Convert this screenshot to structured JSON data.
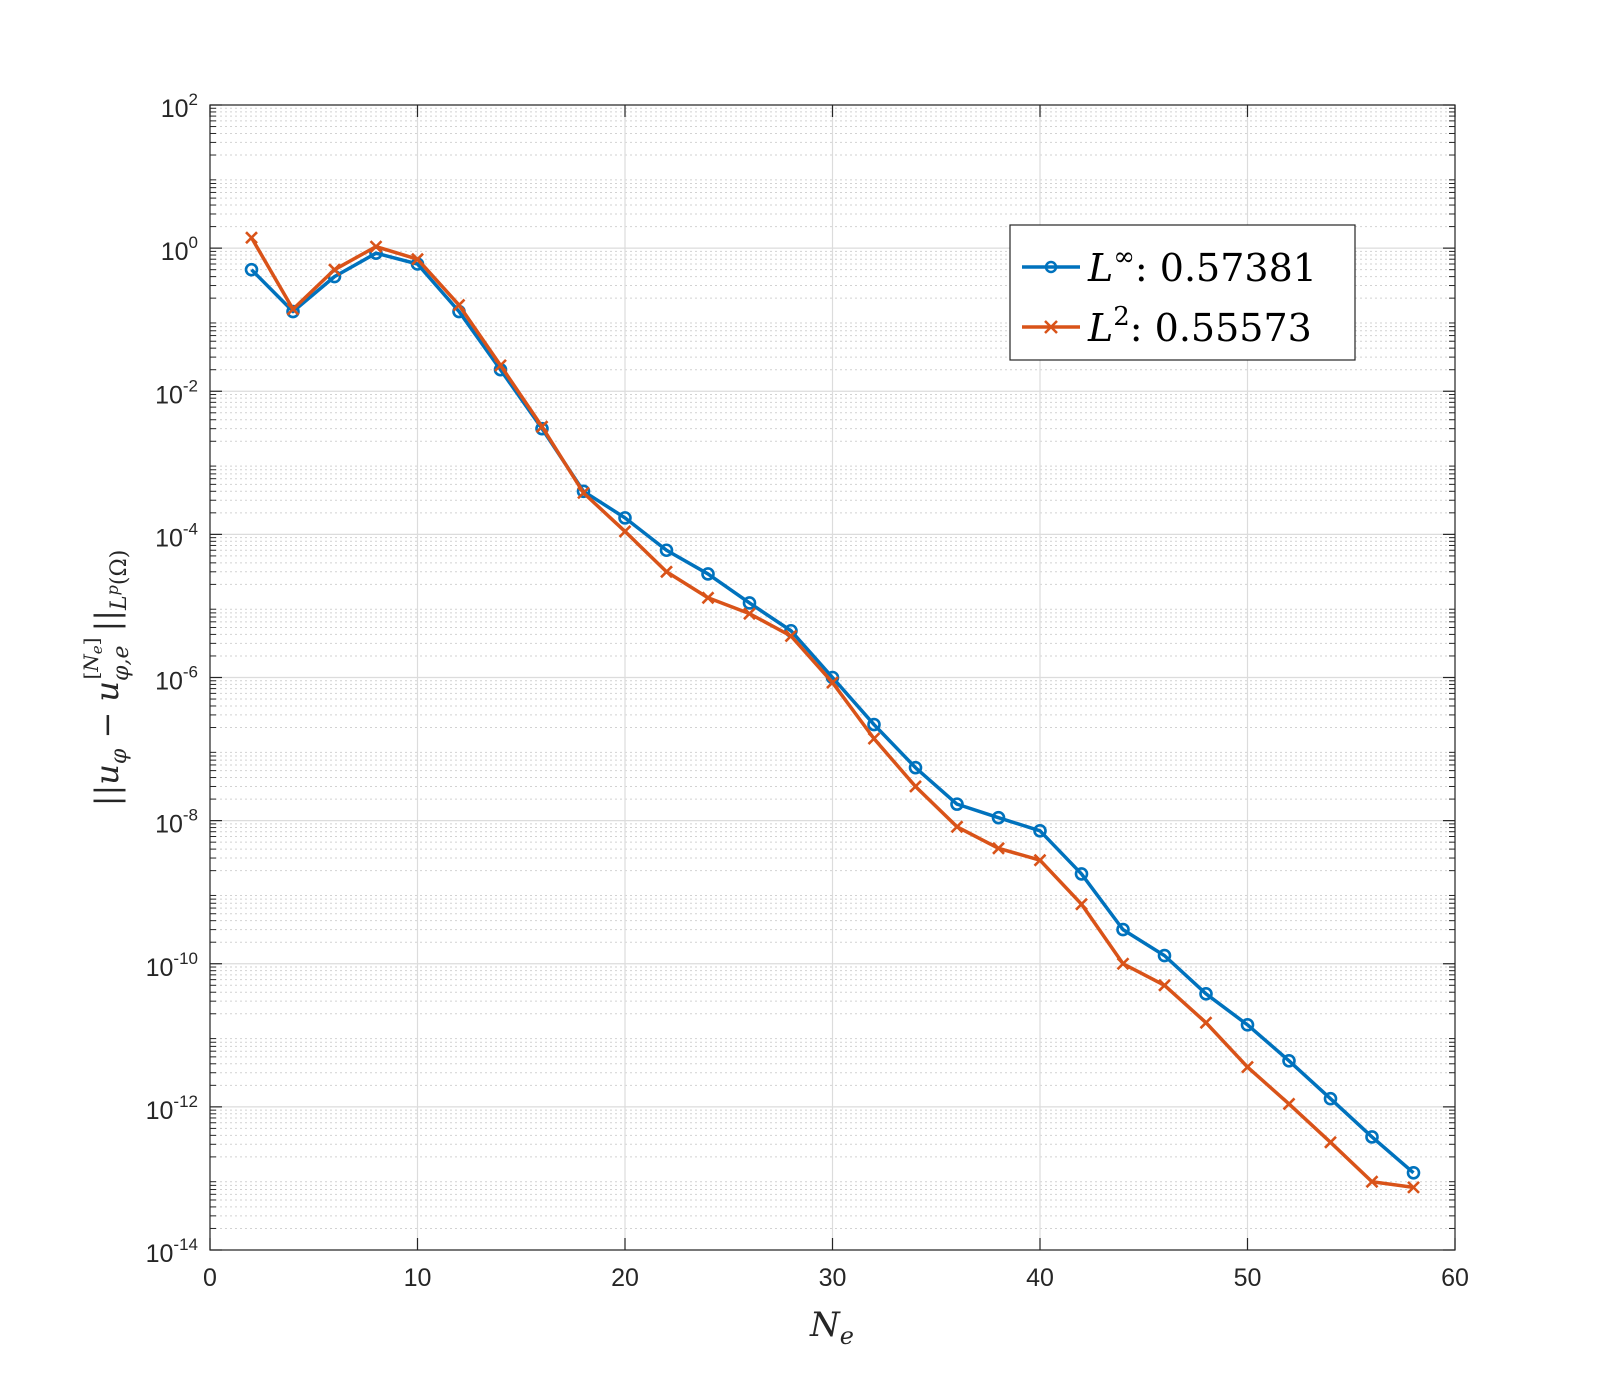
{
  "chart_data": {
    "type": "line",
    "title": "",
    "xlabel": "N_e",
    "ylabel": "||u_φ − u_{φ,e}^{[N_e]}||_{L^p(Ω)}",
    "xlim": [
      0,
      60
    ],
    "ylim_exponents": [
      -14,
      2
    ],
    "yscale": "log",
    "grid": true,
    "minor_grid": true,
    "xticks": [
      "0",
      "10",
      "20",
      "30",
      "40",
      "50",
      "60"
    ],
    "yticks": [
      {
        "base": "10",
        "exp": "2"
      },
      {
        "base": "10",
        "exp": "0"
      },
      {
        "base": "10",
        "exp": "-2"
      },
      {
        "base": "10",
        "exp": "-4"
      },
      {
        "base": "10",
        "exp": "-6"
      },
      {
        "base": "10",
        "exp": "-8"
      },
      {
        "base": "10",
        "exp": "-10"
      },
      {
        "base": "10",
        "exp": "-12"
      },
      {
        "base": "10",
        "exp": "-14"
      }
    ],
    "legend_position": "top-right",
    "x": [
      2,
      4,
      6,
      8,
      10,
      12,
      14,
      16,
      18,
      20,
      22,
      24,
      26,
      28,
      30,
      32,
      34,
      36,
      38,
      40,
      42,
      44,
      46,
      48,
      50,
      52,
      54,
      56,
      58
    ],
    "series": [
      {
        "name": "L∞",
        "label_base": "L",
        "label_sup": "∞",
        "label_value": ": 0.57381",
        "color": "#0072BD",
        "marker": "circle",
        "values": [
          0.5,
          0.13,
          0.4,
          0.85,
          0.6,
          0.13,
          0.02,
          0.003,
          0.0004,
          0.00017,
          6e-05,
          2.8e-05,
          1.1e-05,
          4.5e-06,
          1e-06,
          2.2e-07,
          5.5e-08,
          1.7e-08,
          1.1e-08,
          7.2e-09,
          1.8e-09,
          3e-10,
          1.3e-10,
          3.8e-11,
          1.4e-11,
          4.4e-12,
          1.3e-12,
          3.8e-13,
          1.2e-13
        ]
      },
      {
        "name": "L2",
        "label_base": "L",
        "label_sup": "2",
        "label_value": ": 0.55573",
        "color": "#D95319",
        "marker": "x",
        "values": [
          1.4,
          0.14,
          0.5,
          1.05,
          0.7,
          0.16,
          0.023,
          0.0032,
          0.00038,
          0.00011,
          3e-05,
          1.3e-05,
          7.8e-06,
          3.8e-06,
          8.5e-07,
          1.4e-07,
          3e-08,
          8.2e-09,
          4.1e-09,
          2.8e-09,
          6.8e-10,
          1e-10,
          5e-11,
          1.5e-11,
          3.6e-12,
          1.1e-12,
          3.2e-13,
          9e-14,
          7.5e-14
        ]
      }
    ]
  }
}
